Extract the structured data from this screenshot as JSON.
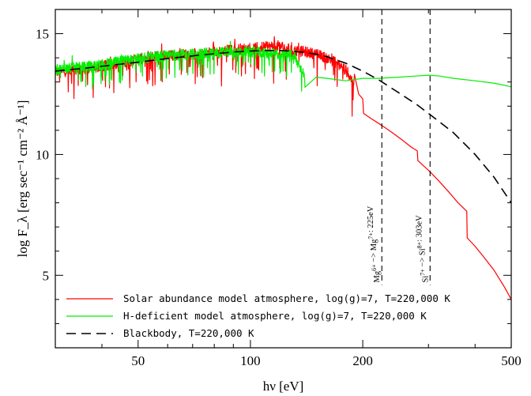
{
  "chart_data": {
    "type": "line",
    "xlabel": "hν [eV]",
    "ylabel": "log F_λ [erg sec⁻¹ cm⁻² Å⁻¹]",
    "x_scale": "log",
    "xlim": [
      30,
      500
    ],
    "ylim": [
      2,
      16
    ],
    "x_ticks": [
      50,
      100,
      200,
      500
    ],
    "y_ticks": [
      5,
      10,
      15
    ],
    "legend_position": "bottom-left",
    "series": [
      {
        "name": "Solar abundance model atmosphere, log(g)=7, T=220,000 K",
        "color": "#ff0000",
        "style": "solid",
        "noisy_until_x": 190,
        "x": [
          30,
          35,
          40,
          45,
          50,
          55,
          60,
          70,
          80,
          90,
          100,
          110,
          120,
          130,
          140,
          150,
          160,
          170,
          180,
          190,
          195,
          200,
          201,
          210,
          220,
          230,
          240,
          250,
          260,
          270,
          280,
          281,
          290,
          300,
          320,
          340,
          360,
          380,
          381,
          400,
          420,
          450,
          480,
          500
        ],
        "y": [
          13.4,
          13.5,
          13.65,
          13.8,
          13.95,
          14.05,
          14.1,
          14.15,
          14.25,
          14.35,
          14.4,
          14.45,
          14.5,
          14.3,
          14.25,
          14.15,
          14.0,
          13.8,
          13.5,
          12.9,
          12.5,
          12.3,
          11.7,
          11.5,
          11.3,
          11.1,
          10.9,
          10.7,
          10.5,
          10.3,
          10.15,
          9.75,
          9.55,
          9.35,
          8.9,
          8.45,
          8.0,
          7.65,
          6.55,
          6.2,
          5.8,
          5.2,
          4.5,
          4.0
        ]
      },
      {
        "name": "H-deficient model atmosphere, log(g)=7, T=220,000 K",
        "color": "#00ee00",
        "style": "solid",
        "noisy_until_x": 140,
        "x": [
          30,
          35,
          40,
          45,
          50,
          55,
          60,
          70,
          80,
          90,
          100,
          110,
          120,
          130,
          140,
          150,
          160,
          170,
          180,
          190,
          200,
          220,
          250,
          280,
          300,
          320,
          350,
          400,
          450,
          500
        ],
        "y": [
          13.5,
          13.6,
          13.7,
          13.85,
          13.95,
          14.05,
          14.1,
          14.15,
          14.2,
          14.25,
          14.25,
          14.2,
          14.15,
          14.1,
          13.3,
          13.2,
          13.15,
          13.1,
          13.05,
          13.1,
          13.15,
          13.15,
          13.2,
          13.25,
          13.28,
          13.25,
          13.15,
          13.05,
          12.95,
          12.8
        ]
      },
      {
        "name": "Blackbody, T=220,000 K",
        "color": "#000000",
        "style": "dashed",
        "x": [
          30,
          35,
          40,
          50,
          60,
          70,
          80,
          90,
          100,
          110,
          120,
          130,
          140,
          150,
          160,
          180,
          200,
          220,
          250,
          280,
          300,
          350,
          400,
          450,
          500
        ],
        "y": [
          13.45,
          13.55,
          13.65,
          13.82,
          13.97,
          14.08,
          14.17,
          14.24,
          14.28,
          14.3,
          14.3,
          14.27,
          14.22,
          14.15,
          14.05,
          13.78,
          13.45,
          13.1,
          12.55,
          12.05,
          11.7,
          10.9,
          10.0,
          9.05,
          8.0
        ]
      }
    ],
    "vlines": [
      {
        "x": 225,
        "label_a": "Mg",
        "sup_a": "6+",
        "mid": " −> ",
        "label_b": "Mg",
        "sup_b": "7+",
        "tail": ": 225eV"
      },
      {
        "x": 303,
        "label_a": "Si",
        "sup_a": "7+",
        "mid": " −> ",
        "label_b": "Si",
        "sup_b": "8+",
        "tail": ": 303eV"
      }
    ]
  }
}
